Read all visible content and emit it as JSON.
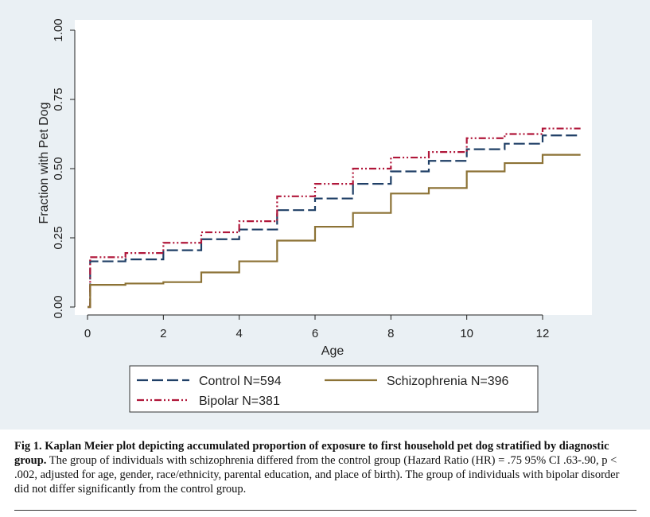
{
  "chart_data": {
    "type": "line",
    "subtype": "step",
    "title": "",
    "xlabel": "Age",
    "ylabel": "Fraction with Pet Dog",
    "xlim": [
      0,
      13
    ],
    "ylim": [
      0,
      1
    ],
    "x_ticks": [
      "0",
      "2",
      "4",
      "6",
      "8",
      "10",
      "12"
    ],
    "x_tick_values": [
      0,
      2,
      4,
      6,
      8,
      10,
      12
    ],
    "y_ticks": [
      "0.00",
      "0.25",
      "0.50",
      "0.75",
      "1.00"
    ],
    "y_tick_values": [
      0,
      0.25,
      0.5,
      0.75,
      1.0
    ],
    "grid": false,
    "legend_position": "bottom",
    "series": [
      {
        "name": "Control N=594",
        "color": "#1f3f66",
        "dash": "dashed",
        "x": [
          0,
          0.07,
          1,
          2,
          3,
          4,
          5,
          6,
          7,
          8,
          9,
          10,
          11,
          12,
          13
        ],
        "y": [
          0,
          0.165,
          0.172,
          0.205,
          0.245,
          0.28,
          0.35,
          0.392,
          0.445,
          0.49,
          0.528,
          0.57,
          0.59,
          0.62,
          0.62
        ]
      },
      {
        "name": "Bipolar N=381",
        "color": "#b0173a",
        "dash": "dashdot",
        "x": [
          0,
          0.07,
          1,
          2,
          3,
          4,
          5,
          6,
          7,
          8,
          9,
          10,
          11,
          12,
          13
        ],
        "y": [
          0,
          0.18,
          0.195,
          0.232,
          0.27,
          0.31,
          0.4,
          0.445,
          0.5,
          0.54,
          0.56,
          0.61,
          0.625,
          0.645,
          0.645
        ]
      },
      {
        "name": "Schizophrenia N=396",
        "color": "#8c7235",
        "dash": "solid",
        "x": [
          0,
          0.07,
          1,
          2,
          3,
          4,
          5,
          6,
          7,
          8,
          9,
          10,
          11,
          12,
          13
        ],
        "y": [
          0,
          0.08,
          0.085,
          0.09,
          0.125,
          0.165,
          0.24,
          0.29,
          0.34,
          0.41,
          0.43,
          0.49,
          0.52,
          0.55,
          0.55
        ]
      }
    ]
  },
  "caption": {
    "bold": "Fig 1. Kaplan Meier plot depicting accumulated proportion of exposure to first household pet dog stratified by diagnostic group.",
    "text": " The group of individuals with schizophrenia differed from the control group (Hazard Ratio (HR) = .75 95% CI .63-.90, p < .002, adjusted for age, gender, race/ethnicity, parental education, and place of birth). The group of individuals with bipolar disorder did not differ significantly from the control group."
  }
}
